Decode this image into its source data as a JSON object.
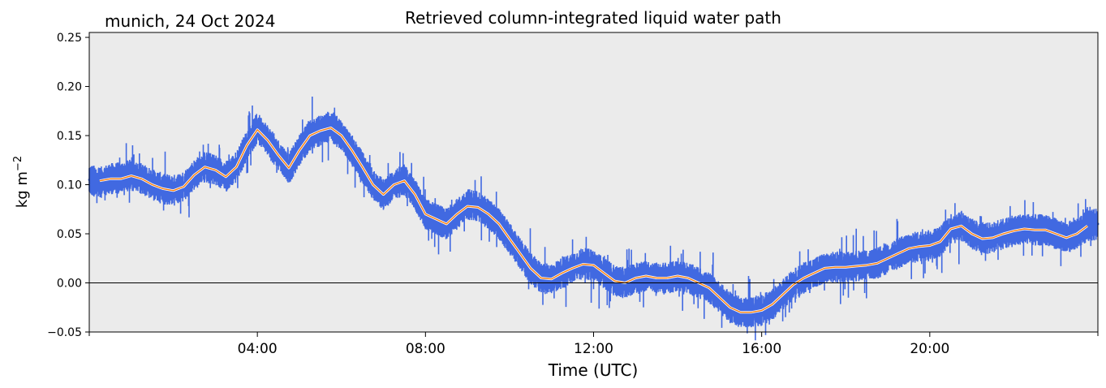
{
  "chart_data": {
    "type": "line",
    "title": "Retrieved column-integrated liquid water path",
    "subtitle": "munich, 24 Oct 2024",
    "xlabel": "Time (UTC)",
    "ylabel": "kg m",
    "ylabel_superscript": "−2",
    "x_unit": "hours UTC",
    "xlim": [
      0,
      24
    ],
    "ylim": [
      -0.05,
      0.255
    ],
    "x_ticks": [
      {
        "value": 4,
        "label": "04:00"
      },
      {
        "value": 8,
        "label": "08:00"
      },
      {
        "value": 12,
        "label": "12:00"
      },
      {
        "value": 16,
        "label": "16:00"
      },
      {
        "value": 20,
        "label": "20:00"
      }
    ],
    "y_ticks": [
      {
        "value": -0.05,
        "label": "−0.05"
      },
      {
        "value": 0.0,
        "label": "0.00"
      },
      {
        "value": 0.05,
        "label": "0.05"
      },
      {
        "value": 0.1,
        "label": "0.10"
      },
      {
        "value": 0.15,
        "label": "0.15"
      },
      {
        "value": 0.2,
        "label": "0.20"
      },
      {
        "value": 0.25,
        "label": "0.25"
      }
    ],
    "zero_line": 0.0,
    "background": "#ebebeb",
    "grid": false,
    "legend": "none",
    "series": [
      {
        "role": "retrieval",
        "color": "#4169e1",
        "x": [
          0.0,
          0.25,
          0.5,
          0.75,
          1.0,
          1.25,
          1.5,
          1.75,
          2.0,
          2.25,
          2.5,
          2.75,
          3.0,
          3.25,
          3.5,
          3.75,
          4.0,
          4.25,
          4.5,
          4.75,
          5.0,
          5.25,
          5.5,
          5.75,
          6.0,
          6.25,
          6.5,
          6.75,
          7.0,
          7.25,
          7.5,
          7.75,
          8.0,
          8.25,
          8.5,
          8.75,
          9.0,
          9.25,
          9.5,
          9.75,
          10.0,
          10.25,
          10.5,
          10.75,
          11.0,
          11.25,
          11.5,
          11.75,
          12.0,
          12.25,
          12.5,
          12.75,
          13.0,
          13.25,
          13.5,
          13.75,
          14.0,
          14.25,
          14.5,
          14.75,
          15.0,
          15.25,
          15.5,
          15.75,
          16.0,
          16.25,
          16.5,
          16.75,
          17.0,
          17.25,
          17.5,
          17.75,
          18.0,
          18.25,
          18.5,
          18.75,
          19.0,
          19.25,
          19.5,
          19.75,
          20.0,
          20.25,
          20.5,
          20.75,
          21.0,
          21.25,
          21.5,
          21.75,
          22.0,
          22.25,
          22.5,
          22.75,
          23.0,
          23.25,
          23.5,
          23.75,
          24.0
        ],
        "y": [
          0.105,
          0.102,
          0.106,
          0.107,
          0.11,
          0.106,
          0.1,
          0.096,
          0.094,
          0.098,
          0.11,
          0.118,
          0.115,
          0.108,
          0.118,
          0.14,
          0.158,
          0.145,
          0.13,
          0.116,
          0.135,
          0.15,
          0.155,
          0.16,
          0.15,
          0.135,
          0.118,
          0.1,
          0.09,
          0.1,
          0.105,
          0.09,
          0.07,
          0.065,
          0.06,
          0.07,
          0.08,
          0.078,
          0.07,
          0.06,
          0.045,
          0.03,
          0.015,
          0.005,
          0.004,
          0.01,
          0.015,
          0.02,
          0.018,
          0.01,
          0.002,
          0.0,
          0.005,
          0.007,
          0.005,
          0.005,
          0.007,
          0.005,
          0.0,
          -0.005,
          -0.015,
          -0.025,
          -0.03,
          -0.03,
          -0.028,
          -0.022,
          -0.012,
          -0.002,
          0.005,
          0.01,
          0.015,
          0.016,
          0.016,
          0.017,
          0.018,
          0.02,
          0.025,
          0.03,
          0.035,
          0.037,
          0.038,
          0.042,
          0.055,
          0.058,
          0.05,
          0.045,
          0.046,
          0.05,
          0.053,
          0.055,
          0.054,
          0.054,
          0.05,
          0.046,
          0.05,
          0.058,
          0.06
        ]
      },
      {
        "role": "smoothed",
        "color": "#ff7f0e",
        "x": [
          0.25,
          0.5,
          0.75,
          1.0,
          1.25,
          1.5,
          1.75,
          2.0,
          2.25,
          2.5,
          2.75,
          3.0,
          3.25,
          3.5,
          3.75,
          4.0,
          4.25,
          4.5,
          4.75,
          5.0,
          5.25,
          5.5,
          5.75,
          6.0,
          6.25,
          6.5,
          6.75,
          7.0,
          7.25,
          7.5,
          7.75,
          8.0,
          8.25,
          8.5,
          8.75,
          9.0,
          9.25,
          9.5,
          9.75,
          10.0,
          10.25,
          10.5,
          10.75,
          11.0,
          11.25,
          11.5,
          11.75,
          12.0,
          12.25,
          12.5,
          12.75,
          13.0,
          13.25,
          13.5,
          13.75,
          14.0,
          14.25,
          14.5,
          14.75,
          15.0,
          15.25,
          15.5,
          15.75,
          16.0,
          16.25,
          16.5,
          16.75,
          17.0,
          17.25,
          17.5,
          17.75,
          18.0,
          18.25,
          18.5,
          18.75,
          19.0,
          19.25,
          19.5,
          19.75,
          20.0,
          20.25,
          20.5,
          20.75,
          21.0,
          21.25,
          21.5,
          21.75,
          22.0,
          22.25,
          22.5,
          22.75,
          23.0,
          23.25,
          23.5,
          23.75
        ],
        "y": [
          0.104,
          0.106,
          0.106,
          0.109,
          0.106,
          0.1,
          0.096,
          0.094,
          0.098,
          0.11,
          0.118,
          0.115,
          0.108,
          0.118,
          0.14,
          0.156,
          0.145,
          0.13,
          0.117,
          0.135,
          0.15,
          0.155,
          0.158,
          0.15,
          0.135,
          0.118,
          0.1,
          0.09,
          0.1,
          0.104,
          0.09,
          0.07,
          0.065,
          0.06,
          0.07,
          0.078,
          0.077,
          0.07,
          0.06,
          0.045,
          0.03,
          0.015,
          0.005,
          0.004,
          0.01,
          0.015,
          0.019,
          0.018,
          0.01,
          0.002,
          0.0,
          0.005,
          0.007,
          0.005,
          0.005,
          0.007,
          0.005,
          0.0,
          -0.005,
          -0.015,
          -0.025,
          -0.03,
          -0.03,
          -0.028,
          -0.022,
          -0.012,
          -0.002,
          0.005,
          0.01,
          0.015,
          0.016,
          0.016,
          0.017,
          0.018,
          0.02,
          0.025,
          0.03,
          0.035,
          0.037,
          0.038,
          0.042,
          0.055,
          0.058,
          0.05,
          0.045,
          0.046,
          0.05,
          0.053,
          0.055,
          0.054,
          0.054,
          0.05,
          0.046,
          0.05,
          0.058
        ]
      }
    ]
  }
}
